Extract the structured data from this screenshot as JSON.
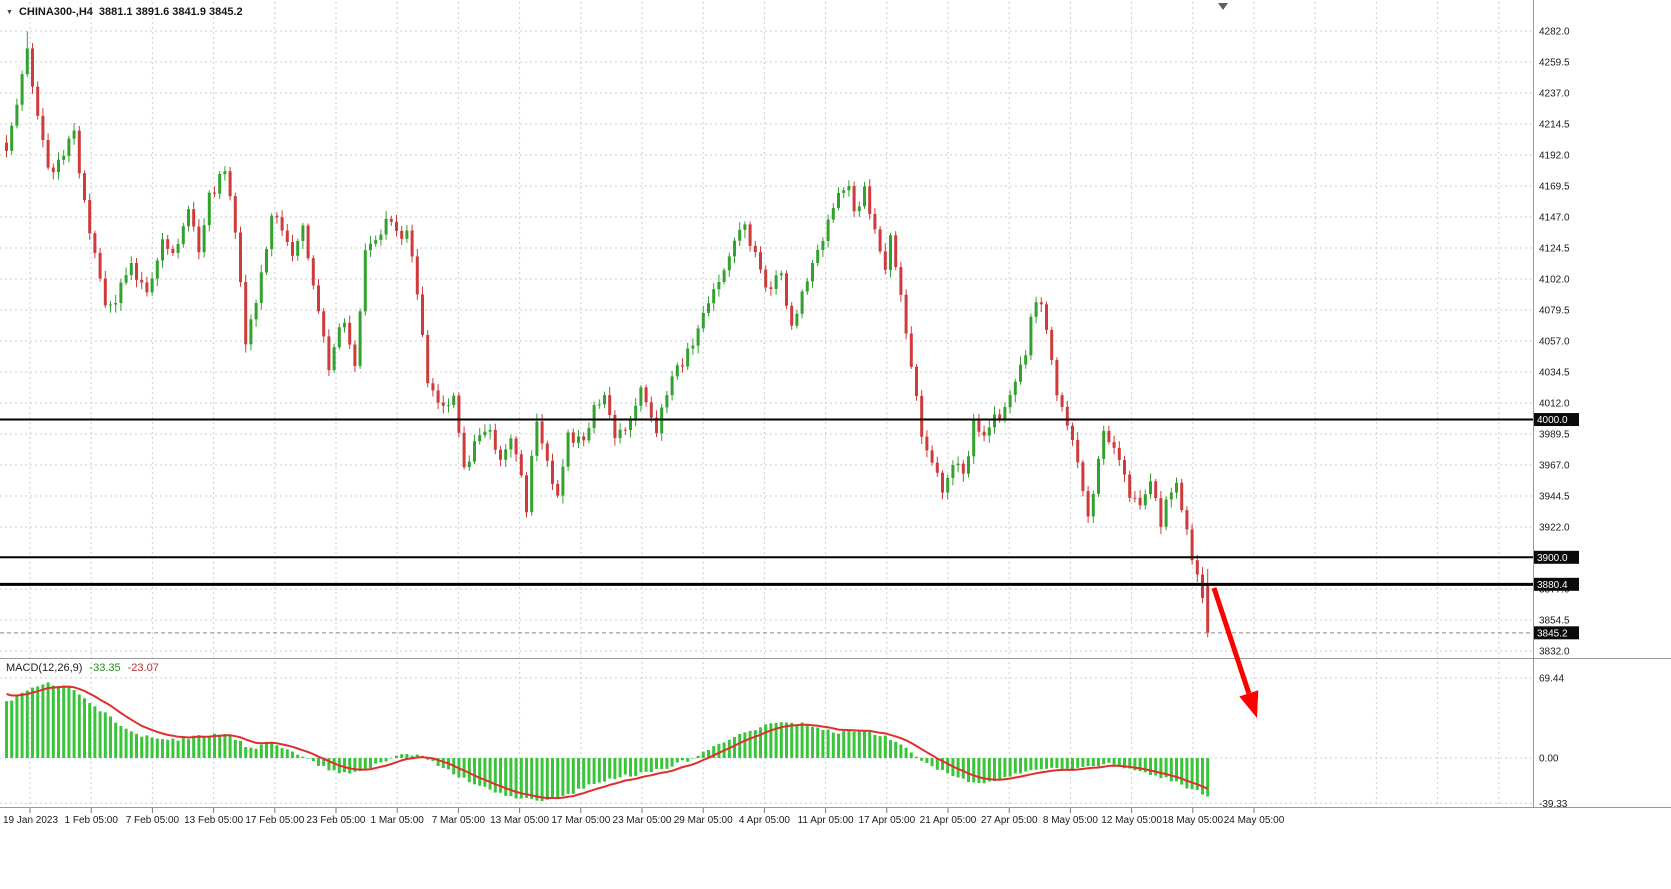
{
  "window": {
    "collapse_icon": "▼",
    "symbol_label": "CHINA300-,H4",
    "ohlc": "3881.1 3891.6 3841.9 3845.2"
  },
  "indicator": {
    "name": "MACD(12,26,9)",
    "value_main": "-33.35",
    "value_signal": "-23.07",
    "scale_labels": [
      "69.44",
      "0.00",
      "-39.33"
    ]
  },
  "price_axis": {
    "grid_labels": [
      "4282.0",
      "4259.5",
      "4237.0",
      "4214.5",
      "4192.0",
      "4169.5",
      "4147.0",
      "4124.5",
      "4102.0",
      "4079.5",
      "4057.0",
      "4034.5",
      "4012.0",
      "3989.5",
      "3967.0",
      "3944.5",
      "3922.0",
      "3899.5",
      "3877.0",
      "3854.5",
      "3832.0"
    ],
    "marked_levels": [
      {
        "label": "4000.0",
        "value": 4000.0
      },
      {
        "label": "3900.0",
        "value": 3900.0
      },
      {
        "label": "3880.4",
        "value": 3880.4
      },
      {
        "label": "3845.2",
        "value": 3845.2
      }
    ]
  },
  "time_axis": {
    "labels": [
      "19 Jan 2023",
      "1 Feb 05:00",
      "7 Feb 05:00",
      "13 Feb 05:00",
      "17 Feb 05:00",
      "23 Feb 05:00",
      "1 Mar 05:00",
      "7 Mar 05:00",
      "13 Mar 05:00",
      "17 Mar 05:00",
      "23 Mar 05:00",
      "29 Mar 05:00",
      "4 Apr 05:00",
      "11 Apr 05:00",
      "17 Apr 05:00",
      "21 Apr 05:00",
      "27 Apr 05:00",
      "8 May 05:00",
      "12 May 05:00",
      "18 May 05:00",
      "24 May 05:00"
    ]
  },
  "annotations": {
    "trend_arrow": {
      "color": "#ff0000",
      "from": [
        1214,
        588
      ],
      "to": [
        1257,
        718
      ]
    }
  },
  "colors": {
    "background": "#ffffff",
    "grid": "#c9cdd7",
    "bull": "#33a12e",
    "bear": "#cf3a3a",
    "histogram": "#39c539",
    "signal_line": "#e02e2e",
    "level_line": "#000000",
    "bid_line": "#8a8a8a",
    "axis_text": "#1a1a1a",
    "label_box_bg": "#0a0a0a",
    "label_box_text": "#ffffff"
  },
  "chart_data": {
    "type": "candlestick",
    "symbol": "CHINA300-",
    "timeframe": "H4",
    "title": "CHINA300-,H4",
    "current_bar": {
      "open": 3881.1,
      "high": 3891.6,
      "low": 3841.9,
      "close": 3845.2
    },
    "bid_price": 3845.2,
    "price_axis_range": [
      3832.0,
      4282.0
    ],
    "price_grid_step": 22.5,
    "horizontal_levels": [
      {
        "price": 4000.0,
        "weight": 2
      },
      {
        "price": 3900.0,
        "weight": 2
      },
      {
        "price": 3880.4,
        "weight": 3
      }
    ],
    "price": {
      "num_candles": 232,
      "high_extreme": {
        "index": 4,
        "price": 4281.8
      },
      "pivots": [
        [
          0,
          4195
        ],
        [
          4,
          4268
        ],
        [
          5,
          4240
        ],
        [
          8,
          4178
        ],
        [
          10,
          4192
        ],
        [
          13,
          4205
        ],
        [
          15,
          4160
        ],
        [
          19,
          4080
        ],
        [
          22,
          4095
        ],
        [
          24,
          4112
        ],
        [
          27,
          4088
        ],
        [
          30,
          4135
        ],
        [
          32,
          4118
        ],
        [
          35,
          4150
        ],
        [
          37,
          4125
        ],
        [
          39,
          4160
        ],
        [
          42,
          4185
        ],
        [
          44,
          4140
        ],
        [
          46,
          4060
        ],
        [
          48,
          4085
        ],
        [
          51,
          4150
        ],
        [
          53,
          4135
        ],
        [
          55,
          4120
        ],
        [
          57,
          4138
        ],
        [
          60,
          4075
        ],
        [
          62,
          4038
        ],
        [
          65,
          4075
        ],
        [
          67,
          4042
        ],
        [
          69,
          4120
        ],
        [
          71,
          4135
        ],
        [
          74,
          4148
        ],
        [
          76,
          4128
        ],
        [
          77,
          4138
        ],
        [
          79,
          4088
        ],
        [
          81,
          4028
        ],
        [
          84,
          4008
        ],
        [
          86,
          4018
        ],
        [
          88,
          3962
        ],
        [
          90,
          3982
        ],
        [
          93,
          3992
        ],
        [
          95,
          3968
        ],
        [
          97,
          3988
        ],
        [
          100,
          3938
        ],
        [
          102,
          4002
        ],
        [
          104,
          3968
        ],
        [
          106,
          3942
        ],
        [
          108,
          3988
        ],
        [
          111,
          3982
        ],
        [
          113,
          4008
        ],
        [
          115,
          4022
        ],
        [
          117,
          3992
        ],
        [
          120,
          3998
        ],
        [
          122,
          4018
        ],
        [
          125,
          3992
        ],
        [
          127,
          4022
        ],
        [
          130,
          4042
        ],
        [
          132,
          4058
        ],
        [
          135,
          4088
        ],
        [
          137,
          4102
        ],
        [
          139,
          4122
        ],
        [
          142,
          4138
        ],
        [
          144,
          4118
        ],
        [
          147,
          4092
        ],
        [
          149,
          4108
        ],
        [
          151,
          4068
        ],
        [
          153,
          4092
        ],
        [
          155,
          4118
        ],
        [
          158,
          4142
        ],
        [
          160,
          4162
        ],
        [
          162,
          4170
        ],
        [
          163,
          4152
        ],
        [
          165,
          4168
        ],
        [
          167,
          4138
        ],
        [
          169,
          4112
        ],
        [
          170,
          4132
        ],
        [
          172,
          4092
        ],
        [
          174,
          4042
        ],
        [
          176,
          3992
        ],
        [
          178,
          3968
        ],
        [
          180,
          3946
        ],
        [
          182,
          3970
        ],
        [
          184,
          3956
        ],
        [
          186,
          3998
        ],
        [
          188,
          3986
        ],
        [
          190,
          4000
        ],
        [
          192,
          4010
        ],
        [
          194,
          4032
        ],
        [
          196,
          4050
        ],
        [
          197,
          4078
        ],
        [
          199,
          4083
        ],
        [
          201,
          4043
        ],
        [
          202,
          4023
        ],
        [
          204,
          3996
        ],
        [
          206,
          3973
        ],
        [
          208,
          3930
        ],
        [
          209,
          3950
        ],
        [
          211,
          3996
        ],
        [
          212,
          3986
        ],
        [
          214,
          3966
        ],
        [
          216,
          3946
        ],
        [
          218,
          3936
        ],
        [
          220,
          3950
        ],
        [
          222,
          3926
        ],
        [
          223,
          3943
        ],
        [
          225,
          3950
        ],
        [
          227,
          3916
        ],
        [
          228,
          3894
        ],
        [
          230,
          3876
        ],
        [
          231,
          3845.2
        ]
      ]
    },
    "macd": {
      "params": "12,26,9",
      "main_last": -33.35,
      "signal_last": -23.07,
      "scale": [
        69.44,
        0,
        -39.33
      ],
      "pivots": [
        [
          0,
          48
        ],
        [
          4,
          58
        ],
        [
          8,
          65
        ],
        [
          12,
          62
        ],
        [
          17,
          45
        ],
        [
          24,
          22
        ],
        [
          30,
          15
        ],
        [
          36,
          18
        ],
        [
          42,
          22
        ],
        [
          47,
          8
        ],
        [
          51,
          14
        ],
        [
          56,
          4
        ],
        [
          60,
          -6
        ],
        [
          64,
          -14
        ],
        [
          68,
          -12
        ],
        [
          73,
          -2
        ],
        [
          77,
          4
        ],
        [
          80,
          2
        ],
        [
          84,
          -8
        ],
        [
          88,
          -18
        ],
        [
          93,
          -28
        ],
        [
          98,
          -34
        ],
        [
          103,
          -37
        ],
        [
          108,
          -32
        ],
        [
          113,
          -22
        ],
        [
          118,
          -16
        ],
        [
          123,
          -13
        ],
        [
          127,
          -8
        ],
        [
          131,
          -2
        ],
        [
          135,
          8
        ],
        [
          140,
          18
        ],
        [
          145,
          27
        ],
        [
          150,
          32
        ],
        [
          155,
          28
        ],
        [
          160,
          22
        ],
        [
          165,
          24
        ],
        [
          169,
          18
        ],
        [
          173,
          8
        ],
        [
          177,
          -4
        ],
        [
          181,
          -14
        ],
        [
          186,
          -22
        ],
        [
          191,
          -19
        ],
        [
          196,
          -12
        ],
        [
          200,
          -8
        ],
        [
          205,
          -10
        ],
        [
          209,
          -7
        ],
        [
          212,
          -4
        ],
        [
          216,
          -9
        ],
        [
          220,
          -14
        ],
        [
          224,
          -19
        ],
        [
          228,
          -27
        ],
        [
          231,
          -33.35
        ]
      ]
    }
  }
}
